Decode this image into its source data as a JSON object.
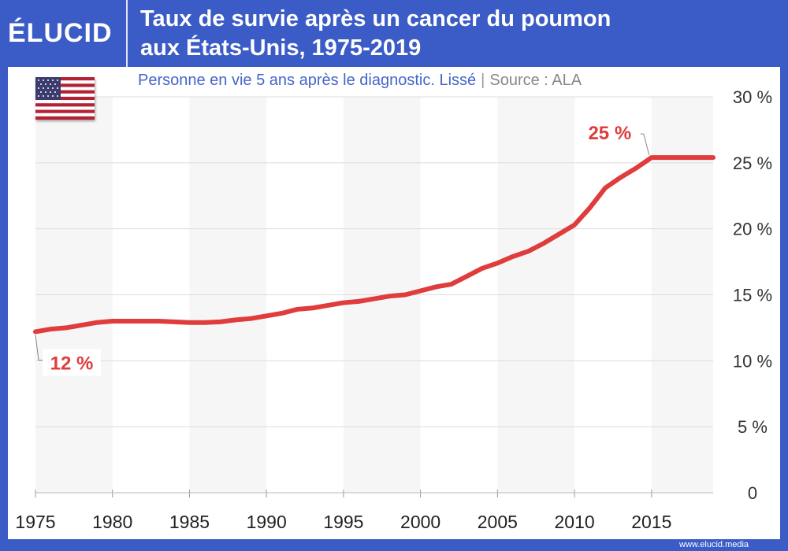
{
  "brand": {
    "logo_text": "ÉLUCID",
    "footer_url": "www.elucid.media"
  },
  "header": {
    "title_line1": "Taux de survie après un cancer du poumon",
    "title_line2": "aux États-Unis, 1975-2019"
  },
  "subtitle": {
    "text": "Personne en vie 5 ans après le diagnostic. Lissé",
    "separator": "|",
    "source": "Source : ALA"
  },
  "flag": {
    "icon": "us-flag-icon"
  },
  "colors": {
    "line": "#e03c3c",
    "accent": "#3b5bc6",
    "subtitle": "#4466cc",
    "band": "#f6f6f6"
  },
  "chart_data": {
    "type": "line",
    "title": "Taux de survie après un cancer du poumon aux États-Unis, 1975-2019",
    "xlabel": "",
    "ylabel": "",
    "xlim": [
      1975,
      2019
    ],
    "ylim": [
      0,
      30
    ],
    "x_ticks": [
      1975,
      1980,
      1985,
      1990,
      1995,
      2000,
      2005,
      2010,
      2015
    ],
    "x_tick_labels": [
      "1975",
      "1980",
      "1985",
      "1990",
      "1995",
      "2000",
      "2005",
      "2010",
      "2015"
    ],
    "y_ticks": [
      0,
      5,
      10,
      15,
      20,
      25,
      30
    ],
    "y_tick_labels": [
      "0",
      "5 %",
      "10 %",
      "15 %",
      "20 %",
      "25 %",
      "30 %"
    ],
    "y_axis_side": "right",
    "grid": true,
    "series": [
      {
        "x": [
          1975,
          1976,
          1977,
          1978,
          1979,
          1980,
          1981,
          1982,
          1983,
          1984,
          1985,
          1986,
          1987,
          1988,
          1989,
          1990,
          1991,
          1992,
          1993,
          1994,
          1995,
          1996,
          1997,
          1998,
          1999,
          2000,
          2001,
          2002,
          2003,
          2004,
          2005,
          2006,
          2007,
          2008,
          2009,
          2010,
          2011,
          2012,
          2013,
          2014,
          2015,
          2016,
          2017,
          2018,
          2019
        ],
        "values": [
          12.2,
          12.4,
          12.5,
          12.7,
          12.9,
          13.0,
          13.0,
          13.0,
          13.0,
          12.95,
          12.9,
          12.9,
          12.95,
          13.1,
          13.2,
          13.4,
          13.6,
          13.9,
          14.0,
          14.2,
          14.4,
          14.5,
          14.7,
          14.9,
          15.0,
          15.3,
          15.6,
          15.8,
          16.4,
          17.0,
          17.4,
          17.9,
          18.3,
          18.9,
          19.6,
          20.3,
          21.6,
          23.1,
          23.9,
          24.6,
          25.4,
          25.4,
          25.4,
          25.4,
          25.4
        ]
      }
    ],
    "annotations": [
      {
        "label": "12 %",
        "x": 1975,
        "y": 12.2
      },
      {
        "label": "25 %",
        "x": 2015,
        "y": 25.4
      }
    ]
  }
}
